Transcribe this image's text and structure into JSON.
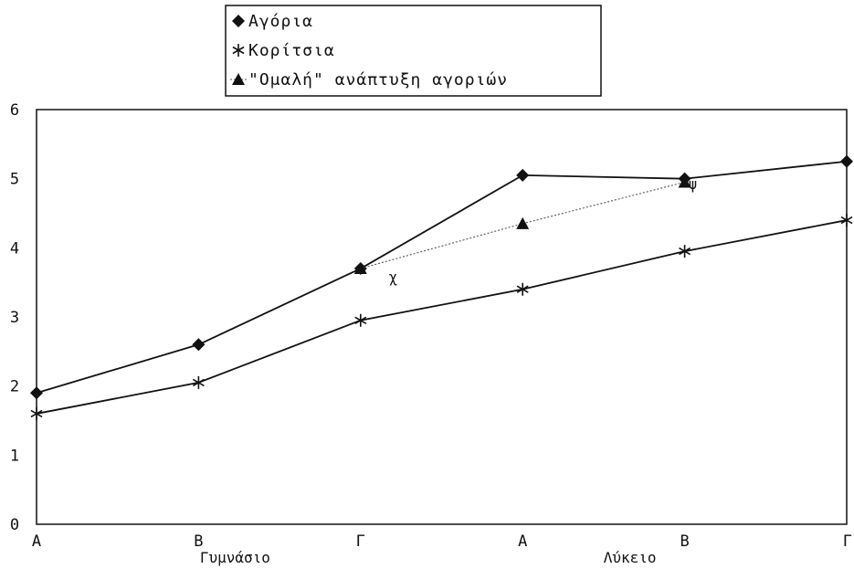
{
  "chart_data": {
    "type": "line",
    "categories": [
      "Α",
      "Β",
      "Γ",
      "Α",
      "Β",
      "Γ"
    ],
    "groups": [
      {
        "label": "Γυμνάσιο",
        "categories": [
          "Α",
          "Β",
          "Γ"
        ]
      },
      {
        "label": "Λύκειο",
        "categories": [
          "Α",
          "Β",
          "Γ"
        ]
      }
    ],
    "series": [
      {
        "name": "Αγόρια",
        "marker": "diamond",
        "style": "solid",
        "color": "#111111",
        "values": [
          1.9,
          2.6,
          3.7,
          5.05,
          5.0,
          5.25
        ]
      },
      {
        "name": "Κορίτσια",
        "marker": "star",
        "style": "solid",
        "color": "#111111",
        "values": [
          1.6,
          2.05,
          2.95,
          3.4,
          3.95,
          4.4
        ]
      },
      {
        "name": "\"Ομαλή\" ανάπτυξη αγοριών",
        "marker": "triangle",
        "style": "dotted",
        "color": "#555555",
        "values": [
          null,
          null,
          3.7,
          4.35,
          4.95,
          null
        ]
      }
    ],
    "annotations": [
      {
        "text": "χ",
        "x_index": 2.2,
        "y": 3.5
      },
      {
        "text": "ψ",
        "x_index": 4.05,
        "y": 4.85
      }
    ],
    "ylim": [
      0,
      6
    ],
    "yticks": [
      0,
      1,
      2,
      3,
      4,
      5,
      6
    ],
    "legend_position": "top-center",
    "grid": false,
    "title": "",
    "xlabel": "",
    "ylabel": ""
  }
}
